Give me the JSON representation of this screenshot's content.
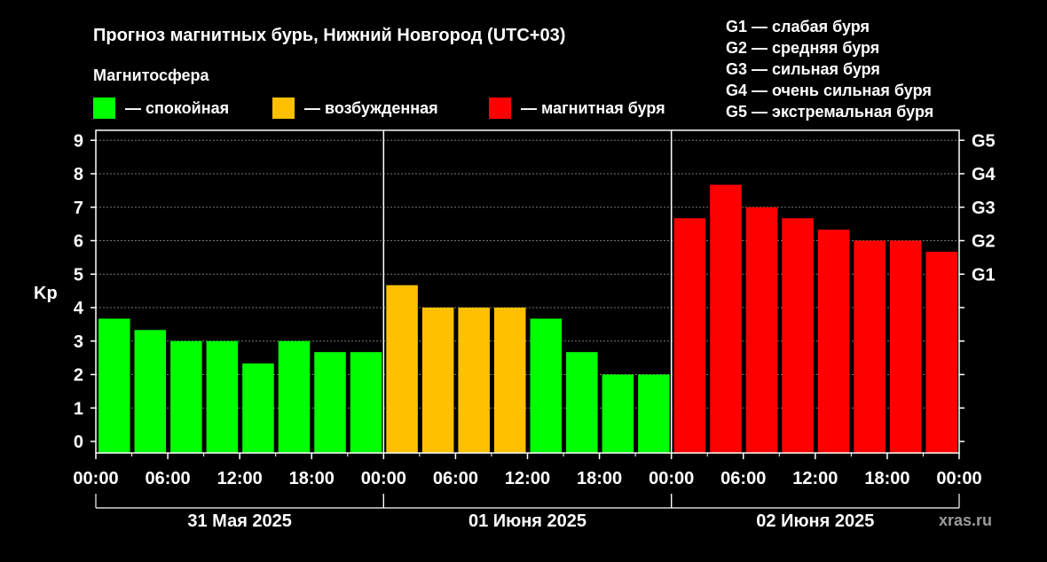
{
  "title": "Прогноз магнитных бурь, Нижний Новгород (UTC+03)",
  "legend": {
    "heading": "Магнитосфера",
    "items": [
      {
        "label": "— спокойная",
        "color": "#00ff00"
      },
      {
        "label": "— возбужденная",
        "color": "#ffc000"
      },
      {
        "label": "— магнитная буря",
        "color": "#ff0000"
      }
    ]
  },
  "g_legend": [
    "G1 — слабая буря",
    "G2 — средняя буря",
    "G3 — сильная буря",
    "G4 — очень сильная буря",
    "G5 — экстремальная буря"
  ],
  "watermark": "xras.ru",
  "chart_data": {
    "type": "bar",
    "ylabel": "Kp",
    "ylim": [
      0,
      9
    ],
    "y_ticks": [
      0,
      1,
      2,
      3,
      4,
      5,
      6,
      7,
      8,
      9
    ],
    "right_axis": [
      {
        "label": "G1",
        "kp": 5
      },
      {
        "label": "G2",
        "kp": 6
      },
      {
        "label": "G3",
        "kp": 7
      },
      {
        "label": "G4",
        "kp": 8
      },
      {
        "label": "G5",
        "kp": 9
      }
    ],
    "x_tick_labels": [
      "00:00",
      "06:00",
      "12:00",
      "18:00",
      "00:00",
      "06:00",
      "12:00",
      "18:00",
      "00:00",
      "06:00",
      "12:00",
      "18:00",
      "00:00"
    ],
    "days": [
      "31 Мая 2025",
      "01 Июня 2025",
      "02 Июня 2025"
    ],
    "grid": "dashed horizontal",
    "colors": {
      "quiet": "#00ff00",
      "active": "#ffc000",
      "storm": "#ff0000"
    },
    "values": [
      3.67,
      3.33,
      3.0,
      3.0,
      2.33,
      3.0,
      2.67,
      2.67,
      4.67,
      4.0,
      4.0,
      4.0,
      3.67,
      2.67,
      2.0,
      2.0,
      6.67,
      7.67,
      7.0,
      6.67,
      6.33,
      6.0,
      6.0,
      5.67
    ]
  }
}
